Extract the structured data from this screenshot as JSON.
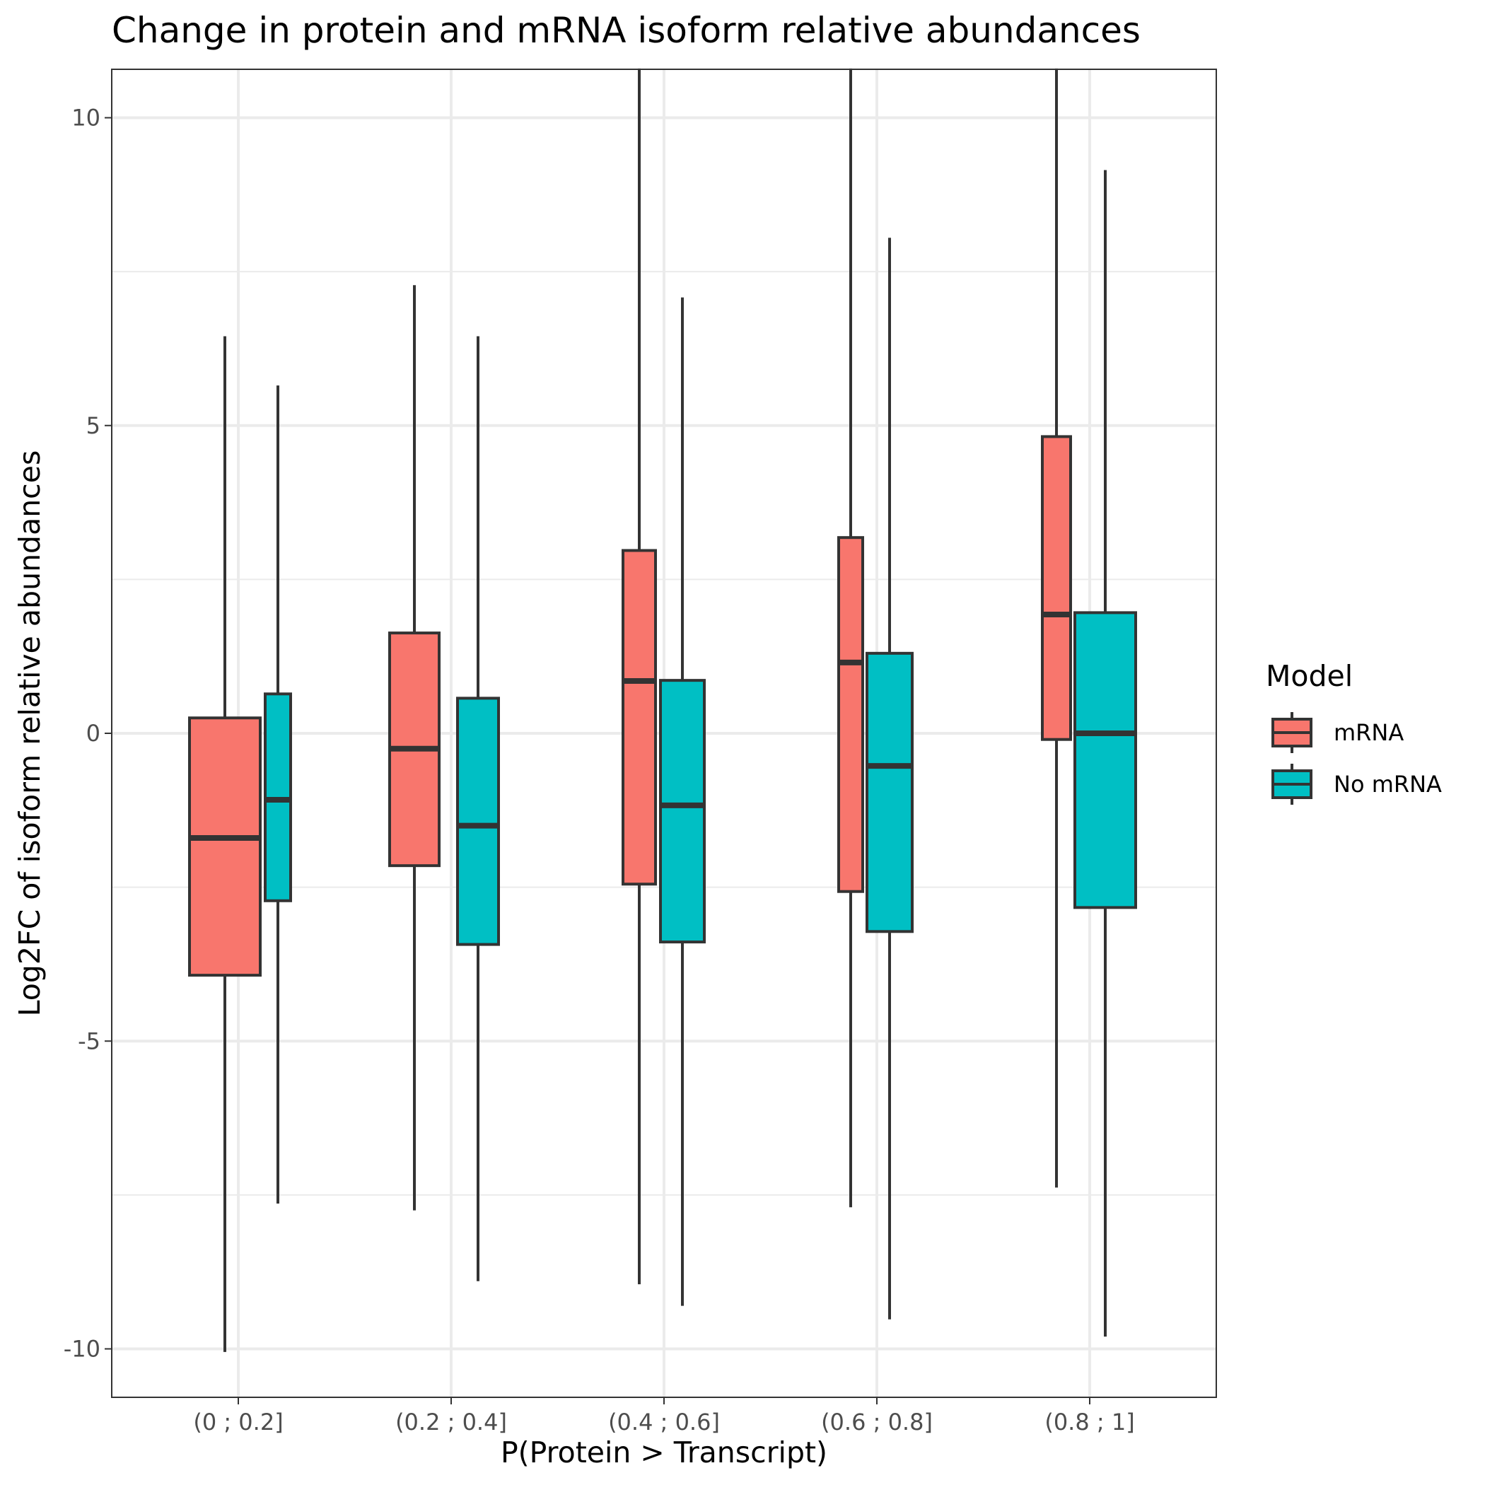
{
  "chart_data": {
    "type": "boxplot",
    "title": "Change in protein and mRNA isoform relative abundances",
    "xlabel": "P(Protein > Transcript)",
    "ylabel": "Log2FC of isoform relative abundances",
    "categories": [
      "(0 ; 0.2]",
      "(0.2 ; 0.4]",
      "(0.4 ; 0.6]",
      "(0.6 ; 0.8]",
      "(0.8 ; 1]"
    ],
    "ylim": [
      -10.8,
      10.8
    ],
    "yticks": [
      -10,
      -5,
      0,
      5,
      10
    ],
    "ytick_labels": [
      "-10",
      "-5",
      "0",
      "5",
      "10"
    ],
    "grid": true,
    "legend": {
      "title": "Model",
      "position": "right",
      "entries": [
        "mRNA",
        "No mRNA"
      ]
    },
    "series": [
      {
        "name": "mRNA",
        "color": "#F8766D",
        "boxes": [
          {
            "whisker_low": -10.05,
            "q1": -3.93,
            "median": -1.7,
            "q3": 0.25,
            "whisker_high": 6.45
          },
          {
            "whisker_low": -7.75,
            "q1": -2.15,
            "median": -0.25,
            "q3": 1.63,
            "whisker_high": 7.28
          },
          {
            "whisker_low": -8.95,
            "q1": -2.45,
            "median": 0.85,
            "q3": 2.97,
            "whisker_high": 10.8
          },
          {
            "whisker_low": -7.7,
            "q1": -2.57,
            "median": 1.15,
            "q3": 3.18,
            "whisker_high": 10.8
          },
          {
            "whisker_low": -7.38,
            "q1": -0.1,
            "median": 1.93,
            "q3": 4.82,
            "whisker_high": 10.8
          }
        ]
      },
      {
        "name": "No mRNA",
        "color": "#00BFC4",
        "boxes": [
          {
            "whisker_low": -7.64,
            "q1": -2.72,
            "median": -1.08,
            "q3": 0.64,
            "whisker_high": 5.65
          },
          {
            "whisker_low": -8.9,
            "q1": -3.43,
            "median": -1.5,
            "q3": 0.57,
            "whisker_high": 6.45
          },
          {
            "whisker_low": -9.3,
            "q1": -3.39,
            "median": -1.17,
            "q3": 0.86,
            "whisker_high": 7.08
          },
          {
            "whisker_low": -9.52,
            "q1": -3.22,
            "median": -0.53,
            "q3": 1.3,
            "whisker_high": 8.05
          },
          {
            "whisker_low": -9.8,
            "q1": -2.83,
            "median": 0.0,
            "q3": 1.96,
            "whisker_high": 9.15
          }
        ]
      }
    ]
  }
}
